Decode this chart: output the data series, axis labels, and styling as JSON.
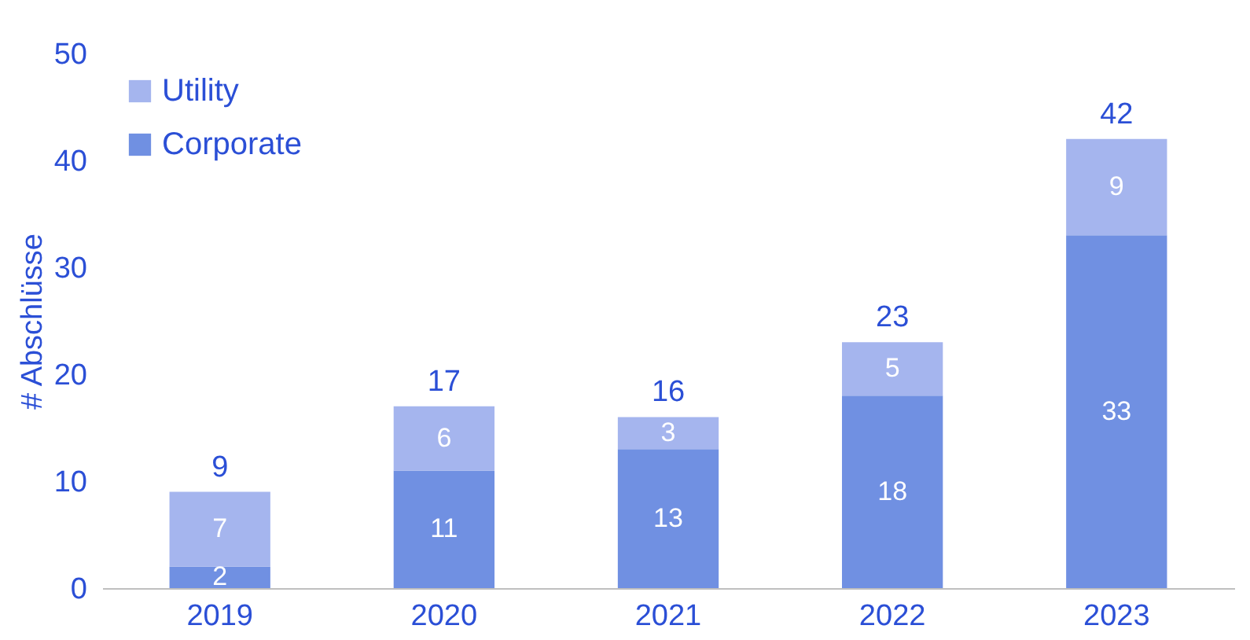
{
  "chart_data": {
    "type": "bar",
    "stacked": true,
    "ylabel": "# Abschlüsse",
    "categories": [
      "2019",
      "2020",
      "2021",
      "2022",
      "2023"
    ],
    "series": [
      {
        "name": "Corporate",
        "color": "#7090e2",
        "values": [
          2,
          11,
          13,
          18,
          33
        ]
      },
      {
        "name": "Utility",
        "color": "#a5b5ee",
        "values": [
          7,
          6,
          3,
          5,
          9
        ]
      }
    ],
    "totals": [
      "9",
      "17",
      "16",
      "23",
      "42"
    ],
    "ylim": [
      0,
      50
    ],
    "yticks": [
      0,
      10,
      20,
      30,
      40,
      50
    ],
    "grid": false,
    "legend": "top left",
    "data_labels": true
  }
}
